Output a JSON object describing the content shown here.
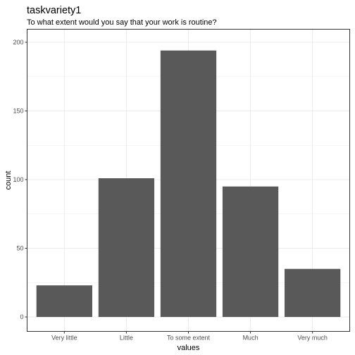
{
  "chart_data": {
    "type": "bar",
    "title": "taskvariety1",
    "subtitle": "To what extent would you say that your work is routine?",
    "xlabel": "values",
    "ylabel": "count",
    "categories": [
      "Very little",
      "Little",
      "To some extent",
      "Much",
      "Very much"
    ],
    "values": [
      23,
      101,
      194,
      95,
      35
    ],
    "ylim": [
      0,
      206
    ],
    "yticks": [
      0,
      50,
      100,
      150,
      200
    ],
    "grid": true,
    "legend": "none",
    "bar_color": "#595959",
    "panel_border_color": "#333333",
    "grid_color": "#ebebeb"
  }
}
